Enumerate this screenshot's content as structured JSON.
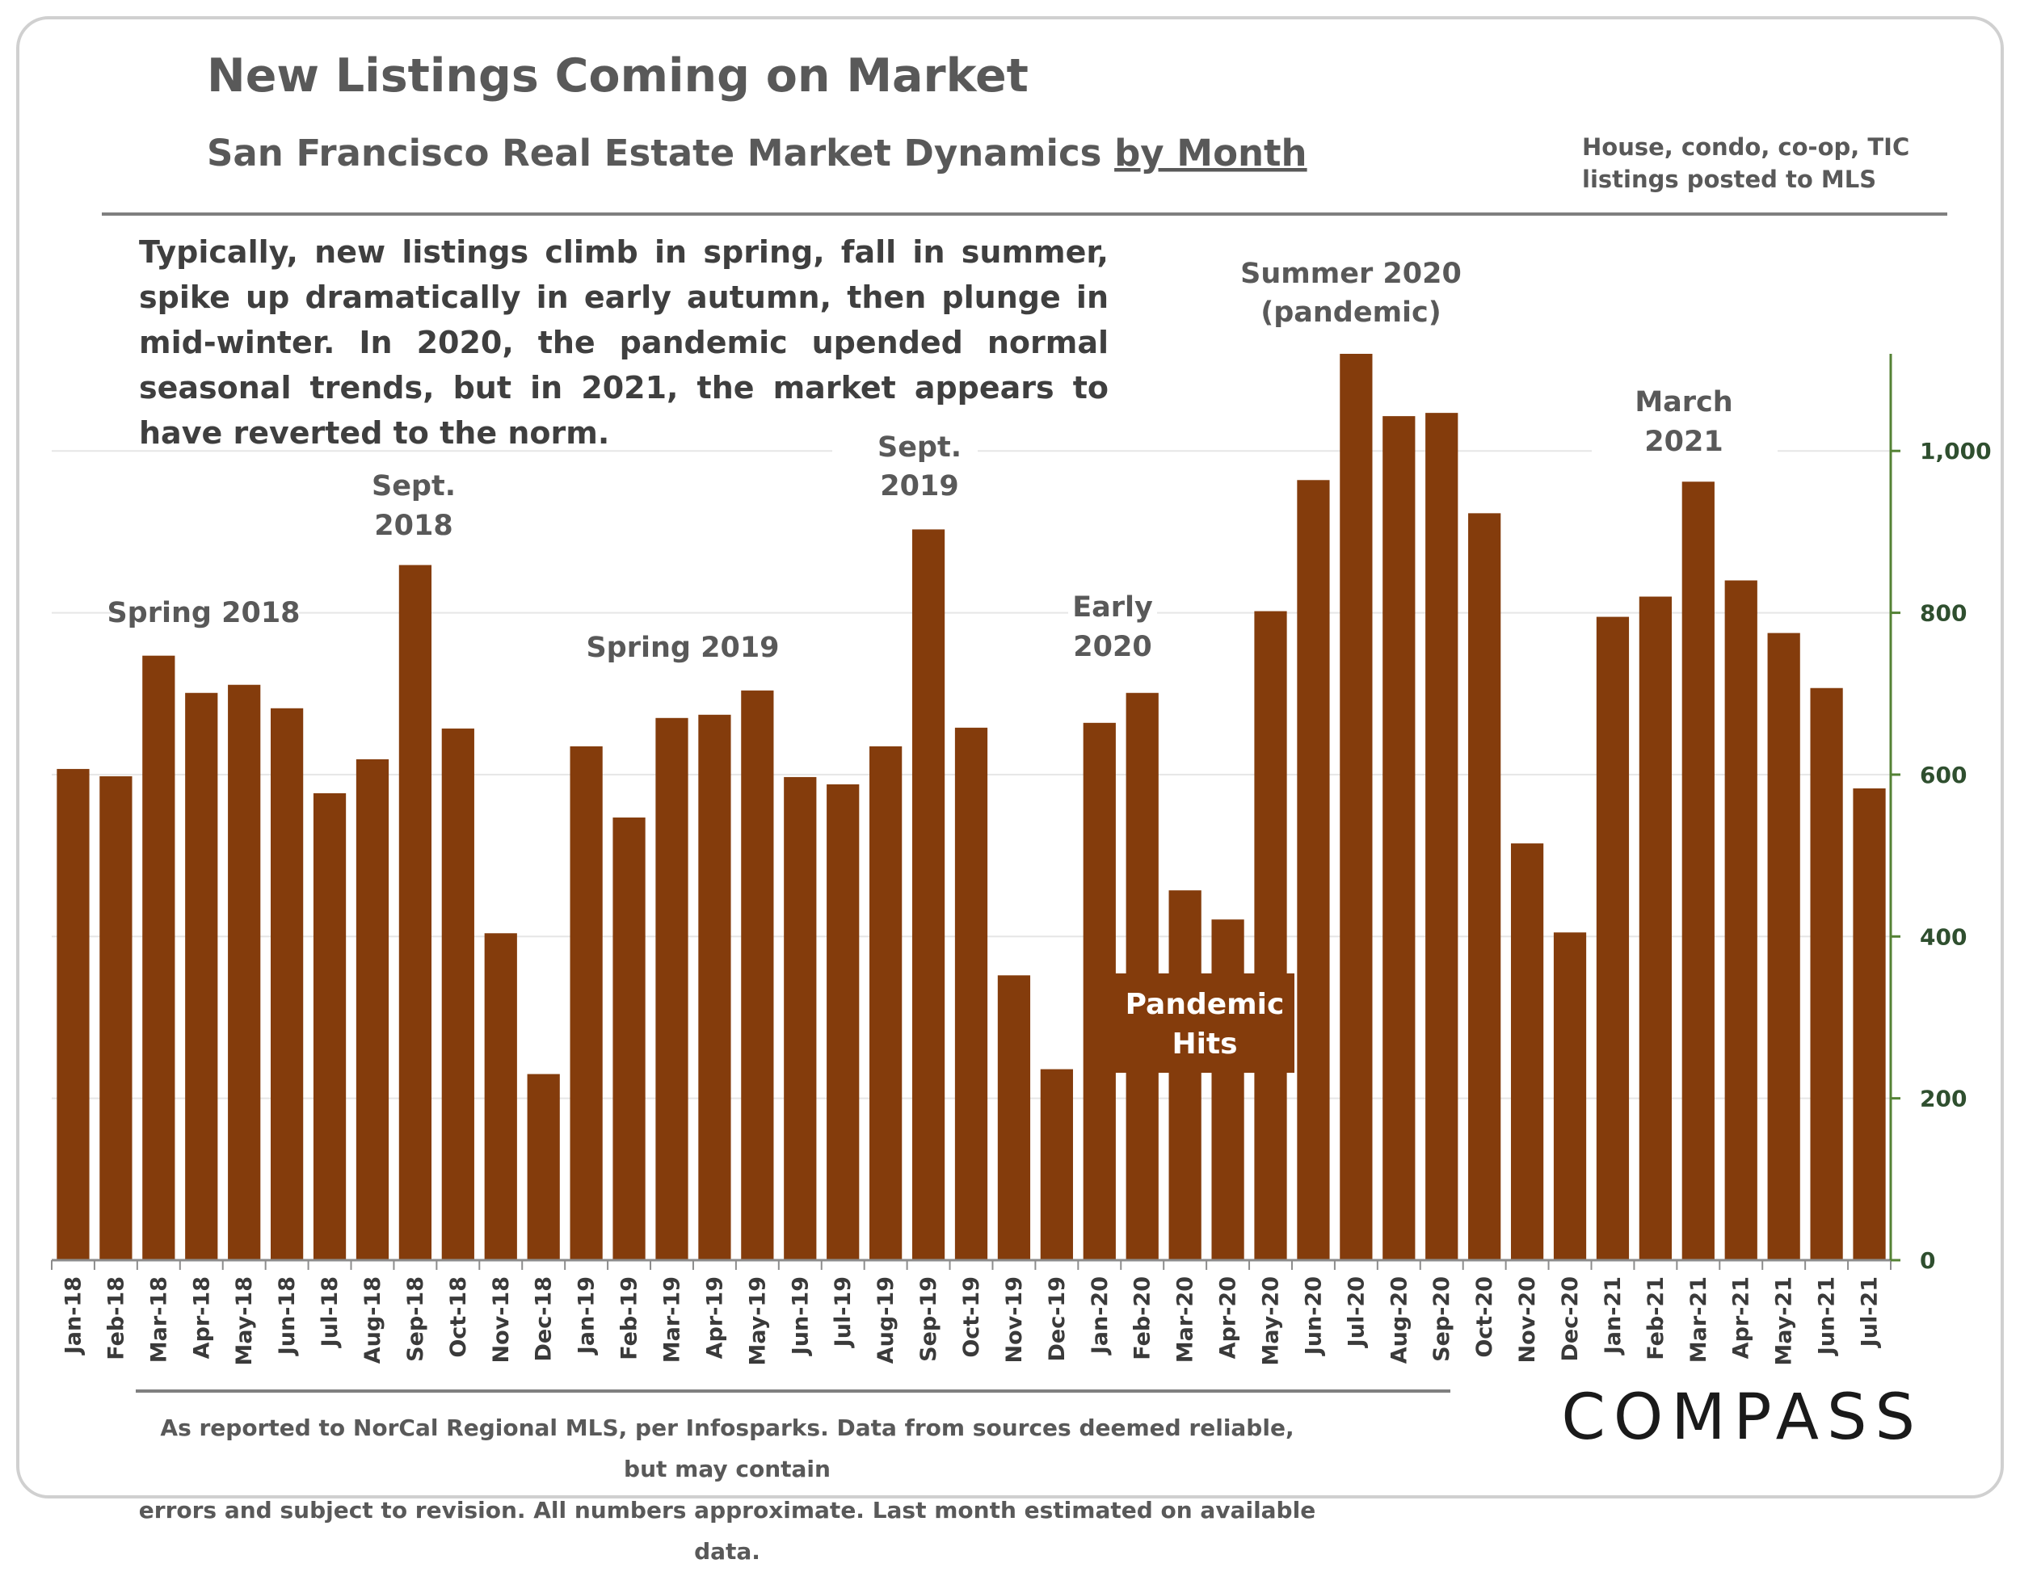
{
  "colors": {
    "bar": "#843c0c",
    "axis": "#548235",
    "grid": "#e6e6e6",
    "rule": "#7f7f7f"
  },
  "header": {
    "title": "New Listings Coming on Market",
    "subtitle": "San Francisco Real Estate Market Dynamics ",
    "subtitle_link": "by Month",
    "note_line1": "House, condo, co-op, TIC",
    "note_line2": "listings posted to MLS"
  },
  "description": "Typically, new listings climb in spring, fall in summer, spike up dramatically in early autumn, then plunge in mid-winter. In 2020, the pandemic upended normal seasonal trends, but in 2021, the market appears to have reverted to the norm.",
  "annotations": {
    "spring2018": "Spring 2018",
    "sept2018_l1": "Sept.",
    "sept2018_l2": "2018",
    "spring2019": "Spring 2019",
    "sept2019_l1": "Sept.",
    "sept2019_l2": "2019",
    "early2020_l1": "Early",
    "early2020_l2": "2020",
    "summer2020_l1": "Summer 2020",
    "summer2020_l2": "(pandemic)",
    "march2021_l1": "March",
    "march2021_l2": "2021",
    "pandemic_l1": "Pandemic",
    "pandemic_l2": "Hits"
  },
  "footer": {
    "line1": "As reported to NorCal Regional MLS, per Infosparks. Data from sources deemed reliable, but may contain",
    "line2": "errors and subject to revision. All numbers approximate. Last month estimated on available data."
  },
  "logo": "COMPASS",
  "chart_data": {
    "type": "bar",
    "title": "New Listings Coming on Market",
    "xlabel": "",
    "ylabel": "",
    "ylim": [
      0,
      1120
    ],
    "yticks": [
      0,
      200,
      400,
      600,
      800,
      1000
    ],
    "ytick_labels": [
      "0",
      "200",
      "400",
      "600",
      "800",
      "1,000"
    ],
    "y_axis_side": "right",
    "grid": true,
    "categories": [
      "Jan-18",
      "Feb-18",
      "Mar-18",
      "Apr-18",
      "May-18",
      "Jun-18",
      "Jul-18",
      "Aug-18",
      "Sep-18",
      "Oct-18",
      "Nov-18",
      "Dec-18",
      "Jan-19",
      "Feb-19",
      "Mar-19",
      "Apr-19",
      "May-19",
      "Jun-19",
      "Jul-19",
      "Aug-19",
      "Sep-19",
      "Oct-19",
      "Nov-19",
      "Dec-19",
      "Jan-20",
      "Feb-20",
      "Mar-20",
      "Apr-20",
      "May-20",
      "Jun-20",
      "Jul-20",
      "Aug-20",
      "Sep-20",
      "Oct-20",
      "Nov-20",
      "Dec-20",
      "Jan-21",
      "Feb-21",
      "Mar-21",
      "Apr-21",
      "May-21",
      "Jun-21",
      "Jul-21"
    ],
    "values": [
      607,
      598,
      747,
      701,
      711,
      682,
      577,
      619,
      859,
      657,
      404,
      230,
      635,
      547,
      670,
      674,
      704,
      597,
      588,
      635,
      903,
      658,
      352,
      236,
      664,
      701,
      457,
      421,
      802,
      964,
      1125,
      1043,
      1047,
      923,
      515,
      405,
      795,
      820,
      962,
      840,
      775,
      707,
      583
    ]
  }
}
